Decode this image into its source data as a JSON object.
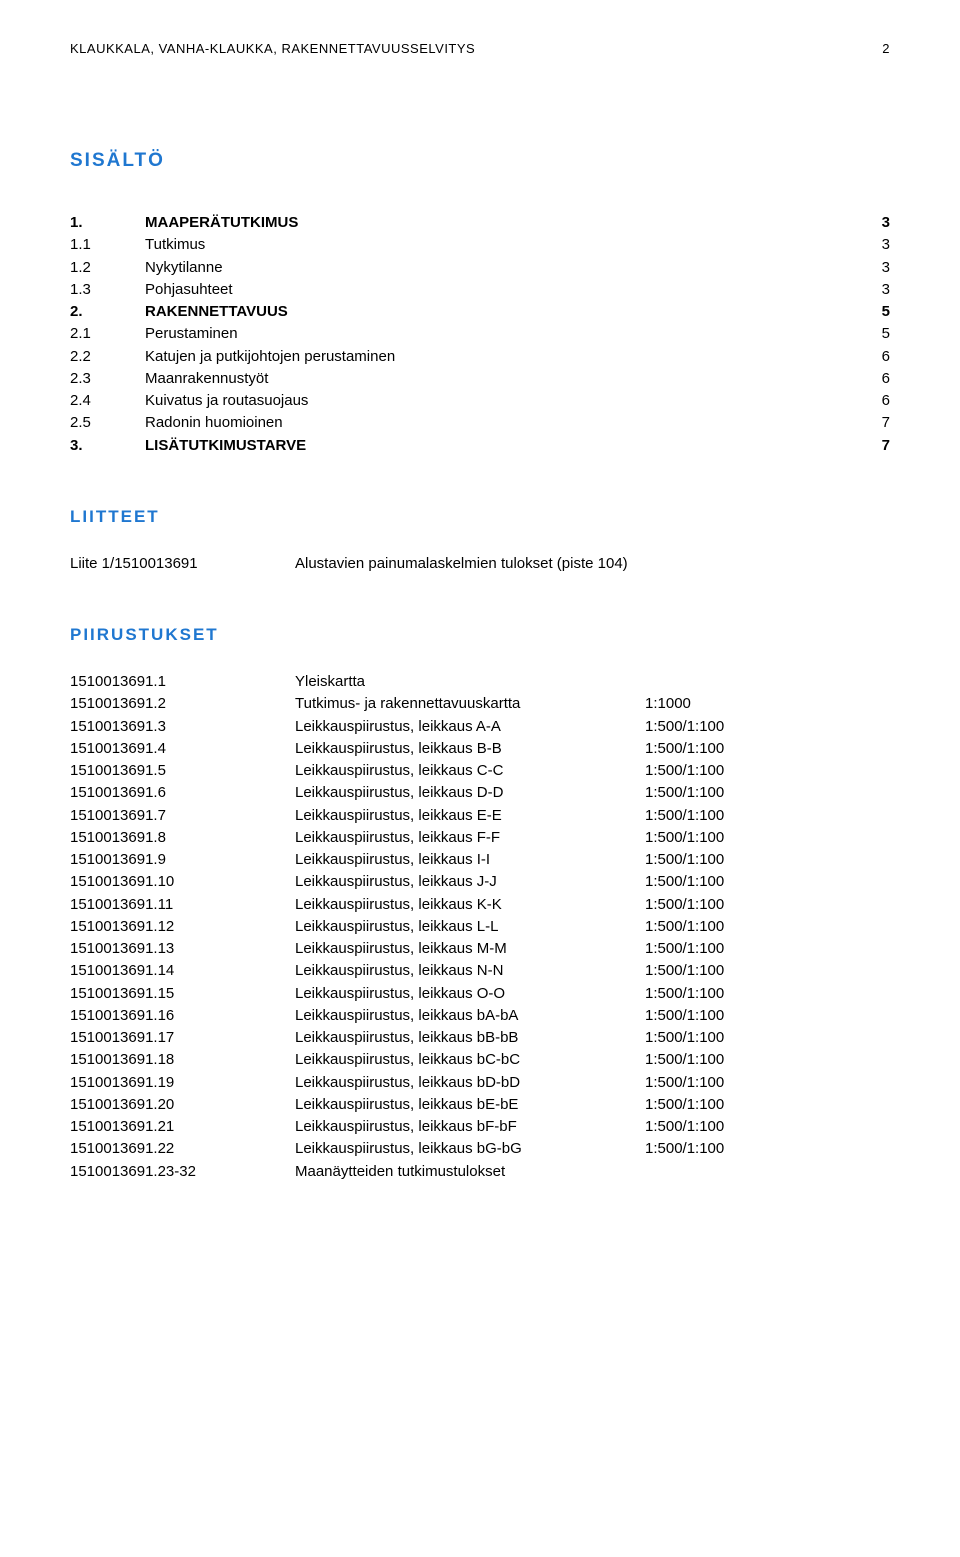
{
  "header": {
    "title": "KLAUKKALA, VANHA-KLAUKKA, RAKENNETTAVUUSSELVITYS",
    "page_number": "2"
  },
  "sections": {
    "sisalto": "SISÄLTÖ",
    "liitteet": "LIITTEET",
    "piirustukset": "PIIRUSTUKSET"
  },
  "toc": [
    {
      "num": "1.",
      "title": "MAAPERÄTUTKIMUS",
      "page": "3",
      "bold": true
    },
    {
      "num": "1.1",
      "title": "Tutkimus",
      "page": "3",
      "bold": false
    },
    {
      "num": "1.2",
      "title": "Nykytilanne",
      "page": "3",
      "bold": false
    },
    {
      "num": "1.3",
      "title": "Pohjasuhteet",
      "page": "3",
      "bold": false
    },
    {
      "num": "2.",
      "title": "RAKENNETTAVUUS",
      "page": "5",
      "bold": true
    },
    {
      "num": "2.1",
      "title": "Perustaminen",
      "page": "5",
      "bold": false
    },
    {
      "num": "2.2",
      "title": "Katujen ja putkijohtojen perustaminen",
      "page": "6",
      "bold": false
    },
    {
      "num": "2.3",
      "title": "Maanrakennustyöt",
      "page": "6",
      "bold": false
    },
    {
      "num": "2.4",
      "title": "Kuivatus ja routasuojaus",
      "page": "6",
      "bold": false
    },
    {
      "num": "2.5",
      "title": "Radonin huomioinen",
      "page": "7",
      "bold": false
    },
    {
      "num": "3.",
      "title": "LISÄTUTKIMUSTARVE",
      "page": "7",
      "bold": true
    }
  ],
  "liitteet": [
    {
      "id": "Liite 1/1510013691",
      "desc": "Alustavien painumalaskelmien tulokset (piste 104)"
    }
  ],
  "piirustukset": [
    {
      "id": "1510013691.1",
      "desc": "Yleiskartta",
      "scale": ""
    },
    {
      "id": "1510013691.2",
      "desc": "Tutkimus- ja rakennettavuuskartta",
      "scale": "1:1000"
    },
    {
      "id": "1510013691.3",
      "desc": "Leikkauspiirustus, leikkaus A-A",
      "scale": "1:500/1:100"
    },
    {
      "id": "1510013691.4",
      "desc": "Leikkauspiirustus, leikkaus B-B",
      "scale": "1:500/1:100"
    },
    {
      "id": "1510013691.5",
      "desc": "Leikkauspiirustus, leikkaus C-C",
      "scale": "1:500/1:100"
    },
    {
      "id": "1510013691.6",
      "desc": "Leikkauspiirustus, leikkaus D-D",
      "scale": "1:500/1:100"
    },
    {
      "id": "1510013691.7",
      "desc": "Leikkauspiirustus, leikkaus E-E",
      "scale": "1:500/1:100"
    },
    {
      "id": "1510013691.8",
      "desc": "Leikkauspiirustus, leikkaus F-F",
      "scale": "1:500/1:100"
    },
    {
      "id": "1510013691.9",
      "desc": "Leikkauspiirustus, leikkaus I-I",
      "scale": "1:500/1:100"
    },
    {
      "id": "1510013691.10",
      "desc": "Leikkauspiirustus, leikkaus J-J",
      "scale": "1:500/1:100"
    },
    {
      "id": "1510013691.11",
      "desc": "Leikkauspiirustus, leikkaus K-K",
      "scale": "1:500/1:100"
    },
    {
      "id": "1510013691.12",
      "desc": "Leikkauspiirustus, leikkaus L-L",
      "scale": "1:500/1:100"
    },
    {
      "id": "1510013691.13",
      "desc": "Leikkauspiirustus, leikkaus M-M",
      "scale": "1:500/1:100"
    },
    {
      "id": "1510013691.14",
      "desc": "Leikkauspiirustus, leikkaus N-N",
      "scale": "1:500/1:100"
    },
    {
      "id": "1510013691.15",
      "desc": "Leikkauspiirustus, leikkaus O-O",
      "scale": "1:500/1:100"
    },
    {
      "id": "1510013691.16",
      "desc": "Leikkauspiirustus, leikkaus bA-bA",
      "scale": "1:500/1:100"
    },
    {
      "id": "1510013691.17",
      "desc": "Leikkauspiirustus, leikkaus bB-bB",
      "scale": "1:500/1:100"
    },
    {
      "id": "1510013691.18",
      "desc": "Leikkauspiirustus, leikkaus bC-bC",
      "scale": "1:500/1:100"
    },
    {
      "id": "1510013691.19",
      "desc": "Leikkauspiirustus, leikkaus bD-bD",
      "scale": "1:500/1:100"
    },
    {
      "id": "1510013691.20",
      "desc": "Leikkauspiirustus, leikkaus bE-bE",
      "scale": "1:500/1:100"
    },
    {
      "id": "1510013691.21",
      "desc": "Leikkauspiirustus, leikkaus bF-bF",
      "scale": "1:500/1:100"
    },
    {
      "id": "1510013691.22",
      "desc": "Leikkauspiirustus, leikkaus bG-bG",
      "scale": "1:500/1:100"
    },
    {
      "id": "1510013691.23-32",
      "desc": "Maanäytteiden tutkimustulokset",
      "scale": ""
    }
  ]
}
